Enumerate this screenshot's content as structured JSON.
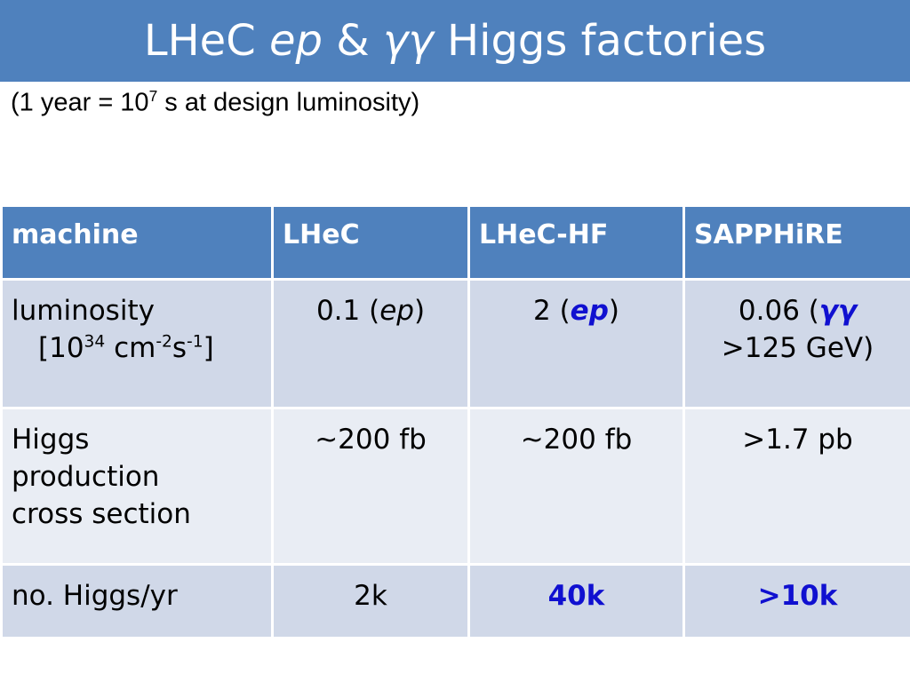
{
  "title": [
    "LHeC ",
    "ep",
    " & ",
    "γγ",
    " Higgs factories"
  ],
  "subtitle": [
    "(1 year = 10",
    "7",
    " s at design luminosity)"
  ],
  "table": {
    "header": [
      "machine",
      "LHeC",
      "LHeC-HF",
      "SAPPHiRE"
    ],
    "rows": [
      [
        [
          "luminosity",
          "[10",
          "34",
          " cm",
          "-2",
          "s",
          "-1",
          "]"
        ],
        [
          "0.1 (",
          "ep",
          ")"
        ],
        [
          "2 (",
          "ep",
          ")"
        ],
        [
          "0.06 (",
          "γγ",
          ">125 GeV)"
        ]
      ],
      [
        [
          "Higgs",
          "production",
          "cross section"
        ],
        [
          "~200 fb"
        ],
        [
          "~200 fb"
        ],
        [
          ">1.7 pb"
        ]
      ],
      [
        [
          "no. Higgs/yr"
        ],
        [
          "2k"
        ],
        [
          "40k"
        ],
        [
          ">10k"
        ]
      ]
    ]
  }
}
